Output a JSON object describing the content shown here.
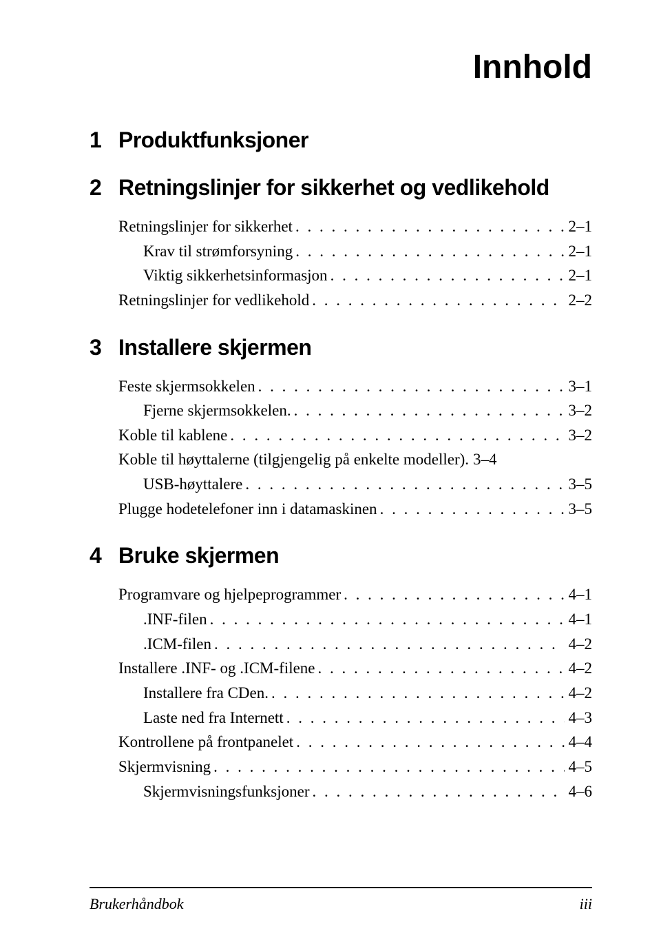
{
  "title": "Innhold",
  "chapters": [
    {
      "num": "1",
      "title": "Produktfunksjoner",
      "entries": []
    },
    {
      "num": "2",
      "title": "Retningslinjer for sikkerhet og vedlikehold",
      "entries": [
        {
          "level": 0,
          "label": "Retningslinjer for sikkerhet",
          "page": "2–1"
        },
        {
          "level": 1,
          "label": "Krav til strømforsyning",
          "page": "2–1"
        },
        {
          "level": 1,
          "label": "Viktig sikkerhetsinformasjon",
          "page": "2–1"
        },
        {
          "level": 0,
          "label": "Retningslinjer for vedlikehold",
          "page": "2–2"
        }
      ]
    },
    {
      "num": "3",
      "title": "Installere skjermen",
      "entries": [
        {
          "level": 0,
          "label": "Feste skjermsokkelen",
          "page": "3–1"
        },
        {
          "level": 1,
          "label": "Fjerne skjermsokkelen.",
          "page": "3–2"
        },
        {
          "level": 0,
          "label": "Koble til kablene",
          "page": "3–2"
        },
        {
          "level": 0,
          "label": "Koble til høyttalerne (tilgjengelig på enkelte modeller).",
          "page": "3–4",
          "no_leader": true
        },
        {
          "level": 1,
          "label": "USB-høyttalere",
          "page": "3–5"
        },
        {
          "level": 0,
          "label": "Plugge hodetelefoner inn i datamaskinen",
          "page": "3–5"
        }
      ]
    },
    {
      "num": "4",
      "title": "Bruke skjermen",
      "entries": [
        {
          "level": 0,
          "label": "Programvare og hjelpeprogrammer",
          "page": "4–1"
        },
        {
          "level": 1,
          "label": ".INF-filen",
          "page": "4–1"
        },
        {
          "level": 1,
          "label": ".ICM-filen",
          "page": "4–2"
        },
        {
          "level": 0,
          "label": "Installere .INF- og .ICM-filene",
          "page": "4–2"
        },
        {
          "level": 1,
          "label": "Installere fra CDen.",
          "page": "4–2"
        },
        {
          "level": 1,
          "label": "Laste ned fra Internett",
          "page": "4–3"
        },
        {
          "level": 0,
          "label": "Kontrollene på frontpanelet",
          "page": "4–4"
        },
        {
          "level": 0,
          "label": "Skjermvisning",
          "page": "4–5"
        },
        {
          "level": 1,
          "label": "Skjermvisningsfunksjoner",
          "page": "4–6"
        }
      ]
    }
  ],
  "footer": {
    "left": "Brukerhåndbok",
    "right": "iii"
  },
  "leader_dots": ". . . . . . . . . . . . . . . . . . . . . . . . . . . . . . . . . . . . . . . . . . . . . . . . . . . . . . . . . . . . . . . . . . . . . . . . . . . . . . . . . . . . . . . . . . . . . . . ."
}
